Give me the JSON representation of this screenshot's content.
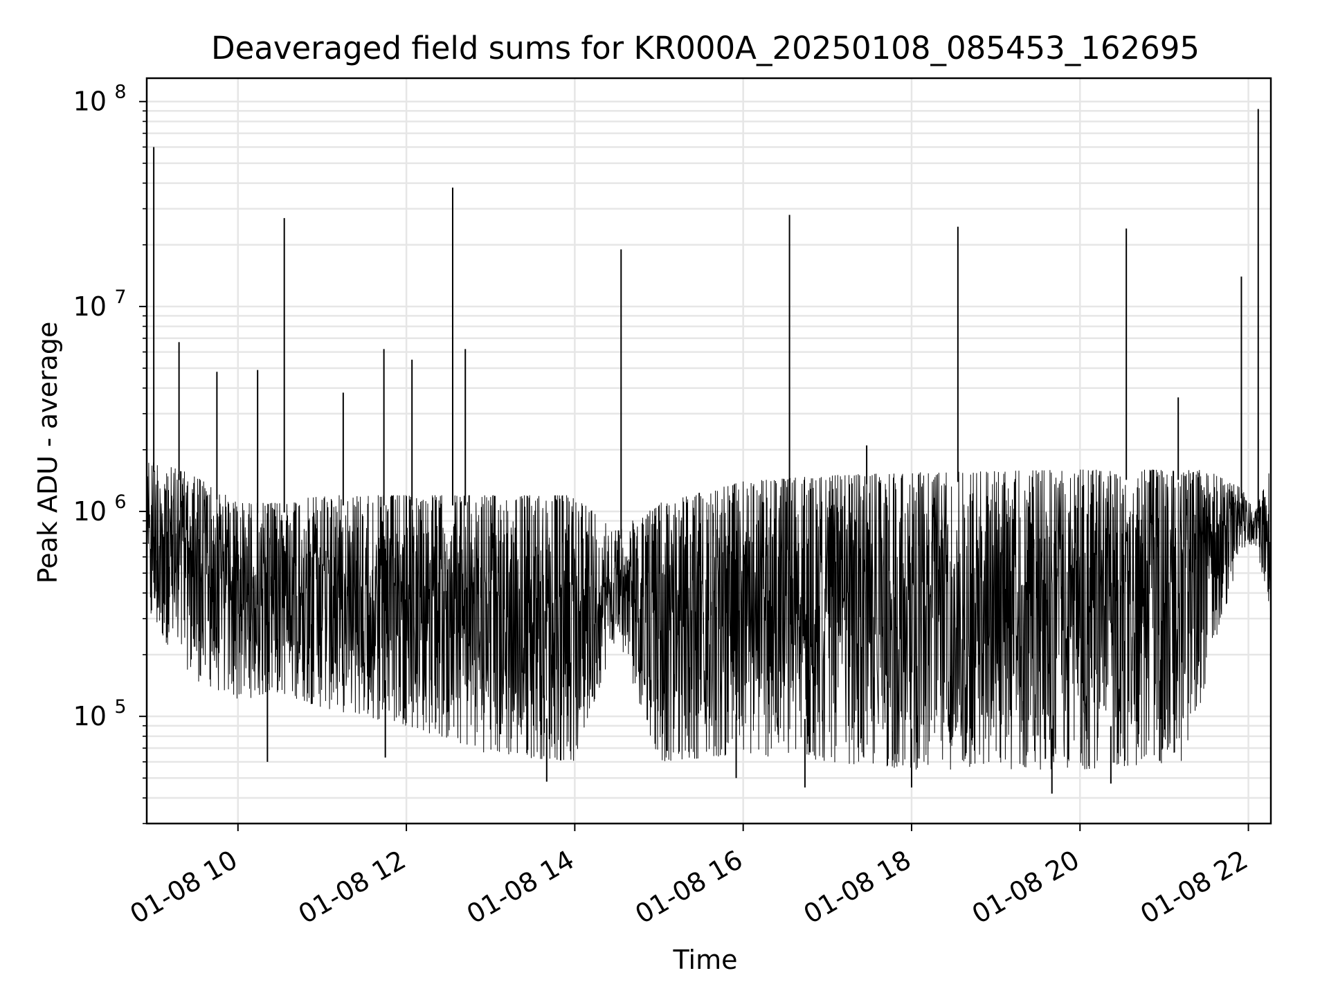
{
  "chart_data": {
    "type": "line",
    "title": "Deaveraged field sums for KR000A_20250108_085453_162695",
    "xlabel": "Time",
    "ylabel": "Peak ADU - average",
    "x_start": "2025-01-08 08:55",
    "x_end": "2025-01-08 22:16",
    "xlim": [
      "2025-01-08 08:55",
      "2025-01-08 22:16"
    ],
    "ylim": [
      30000,
      130000000
    ],
    "yscale": "log",
    "grid": true,
    "x_ticks": [
      {
        "label": "01-08 10",
        "value": "2025-01-08 10:00"
      },
      {
        "label": "01-08 12",
        "value": "2025-01-08 12:00"
      },
      {
        "label": "01-08 14",
        "value": "2025-01-08 14:00"
      },
      {
        "label": "01-08 16",
        "value": "2025-01-08 16:00"
      },
      {
        "label": "01-08 18",
        "value": "2025-01-08 18:00"
      },
      {
        "label": "01-08 20",
        "value": "2025-01-08 20:00"
      },
      {
        "label": "01-08 22",
        "value": "2025-01-08 22:00"
      }
    ],
    "y_ticks": [
      {
        "base": "10",
        "exp": "5",
        "value": 100000
      },
      {
        "base": "10",
        "exp": "6",
        "value": 1000000
      },
      {
        "base": "10",
        "exp": "7",
        "value": 10000000
      },
      {
        "base": "10",
        "exp": "8",
        "value": 100000000
      }
    ],
    "band_profile": [
      {
        "t": "2025-01-08 08:55",
        "low": 300000,
        "high": 1800000
      },
      {
        "t": "2025-01-08 09:30",
        "low": 150000,
        "high": 1500000
      },
      {
        "t": "2025-01-08 10:00",
        "low": 120000,
        "high": 1100000
      },
      {
        "t": "2025-01-08 10:30",
        "low": 130000,
        "high": 1100000
      },
      {
        "t": "2025-01-08 11:00",
        "low": 110000,
        "high": 1200000
      },
      {
        "t": "2025-01-08 12:00",
        "low": 90000,
        "high": 1200000
      },
      {
        "t": "2025-01-08 13:00",
        "low": 65000,
        "high": 1200000
      },
      {
        "t": "2025-01-08 14:00",
        "low": 60000,
        "high": 1200000
      },
      {
        "t": "2025-01-08 14:30",
        "low": 250000,
        "high": 800000
      },
      {
        "t": "2025-01-08 15:00",
        "low": 60000,
        "high": 1100000
      },
      {
        "t": "2025-01-08 16:00",
        "low": 65000,
        "high": 1400000
      },
      {
        "t": "2025-01-08 17:00",
        "low": 60000,
        "high": 1500000
      },
      {
        "t": "2025-01-08 18:00",
        "low": 55000,
        "high": 1550000
      },
      {
        "t": "2025-01-08 20:00",
        "low": 55000,
        "high": 1600000
      },
      {
        "t": "2025-01-08 21:15",
        "low": 60000,
        "high": 1600000
      },
      {
        "t": "2025-01-08 21:30",
        "low": 150000,
        "high": 1600000
      },
      {
        "t": "2025-01-08 21:55",
        "low": 650000,
        "high": 1300000
      },
      {
        "t": "2025-01-08 22:05",
        "low": 700000,
        "high": 1000000
      },
      {
        "t": "2025-01-08 22:16",
        "low": 300000,
        "high": 1700000
      }
    ],
    "spikes": [
      {
        "t": "2025-01-08 09:00",
        "value": 60000000
      },
      {
        "t": "2025-01-08 09:18",
        "value": 6700000
      },
      {
        "t": "2025-01-08 09:45",
        "value": 4800000
      },
      {
        "t": "2025-01-08 10:14",
        "value": 4900000
      },
      {
        "t": "2025-01-08 10:33",
        "value": 27000000
      },
      {
        "t": "2025-01-08 11:15",
        "value": 3800000
      },
      {
        "t": "2025-01-08 11:44",
        "value": 6200000
      },
      {
        "t": "2025-01-08 12:04",
        "value": 5500000
      },
      {
        "t": "2025-01-08 12:33",
        "value": 38000000
      },
      {
        "t": "2025-01-08 12:42",
        "value": 6200000
      },
      {
        "t": "2025-01-08 14:33",
        "value": 19000000
      },
      {
        "t": "2025-01-08 16:33",
        "value": 28000000
      },
      {
        "t": "2025-01-08 17:28",
        "value": 2100000
      },
      {
        "t": "2025-01-08 18:33",
        "value": 24500000
      },
      {
        "t": "2025-01-08 20:33",
        "value": 24000000
      },
      {
        "t": "2025-01-08 21:10",
        "value": 3600000
      },
      {
        "t": "2025-01-08 21:55",
        "value": 14000000
      },
      {
        "t": "2025-01-08 22:07",
        "value": 92000000
      }
    ],
    "dips": [
      {
        "t": "2025-01-08 10:21",
        "value": 60000
      },
      {
        "t": "2025-01-08 11:45",
        "value": 63000
      },
      {
        "t": "2025-01-08 13:40",
        "value": 48000
      },
      {
        "t": "2025-01-08 15:55",
        "value": 50000
      },
      {
        "t": "2025-01-08 16:44",
        "value": 45000
      },
      {
        "t": "2025-01-08 18:00",
        "value": 45000
      },
      {
        "t": "2025-01-08 19:40",
        "value": 42000
      },
      {
        "t": "2025-01-08 20:22",
        "value": 47000
      }
    ]
  }
}
